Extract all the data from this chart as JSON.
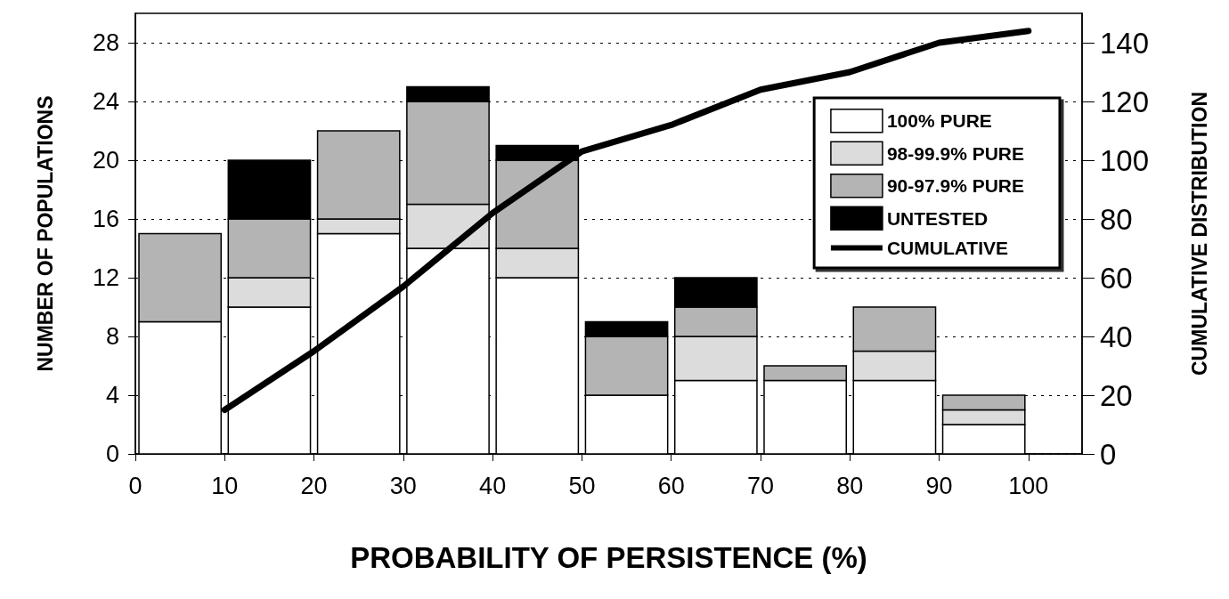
{
  "chart_data": {
    "type": "bar",
    "stacked": true,
    "xlabel": "PROBABILITY OF PERSISTENCE (%)",
    "ylabel": "NUMBER OF POPULATIONS",
    "y2label": "CUMULATIVE DISTRIBUTION",
    "x": [
      5,
      15,
      25,
      35,
      45,
      55,
      65,
      75,
      85,
      95
    ],
    "series": [
      {
        "name": "100% PURE",
        "color": "#ffffff",
        "values": [
          9,
          10,
          15,
          14,
          12,
          4,
          5,
          5,
          5,
          2
        ]
      },
      {
        "name": "98-99.9% PURE",
        "color": "#dcdcdc",
        "values": [
          0,
          2,
          1,
          3,
          2,
          0,
          3,
          0,
          2,
          1
        ]
      },
      {
        "name": "90-97.9% PURE",
        "color": "#b4b4b4",
        "values": [
          6,
          4,
          6,
          7,
          6,
          4,
          2,
          1,
          3,
          1
        ]
      },
      {
        "name": "UNTESTED",
        "color": "#000000",
        "values": [
          0,
          4,
          0,
          1,
          1,
          1,
          2,
          0,
          0,
          0
        ]
      },
      {
        "name": "CUMULATIVE",
        "type": "line",
        "axis": "y2",
        "color": "#000000",
        "x": [
          10,
          20,
          30,
          40,
          50,
          60,
          70,
          80,
          90,
          100
        ],
        "values": [
          15,
          35,
          57,
          82,
          103,
          112,
          124,
          130,
          140,
          144
        ]
      }
    ],
    "xlim": [
      0,
      106
    ],
    "xticks": [
      0,
      10,
      20,
      30,
      40,
      50,
      60,
      70,
      80,
      90,
      100
    ],
    "ylim": [
      0,
      30
    ],
    "yticks": [
      0,
      4,
      8,
      12,
      16,
      20,
      24,
      28
    ],
    "y2lim": [
      0,
      150
    ],
    "y2ticks": [
      0,
      20,
      40,
      60,
      80,
      100,
      120,
      140
    ],
    "grid": "y",
    "legend": "top right",
    "marker": "none",
    "line_style": "solid"
  }
}
